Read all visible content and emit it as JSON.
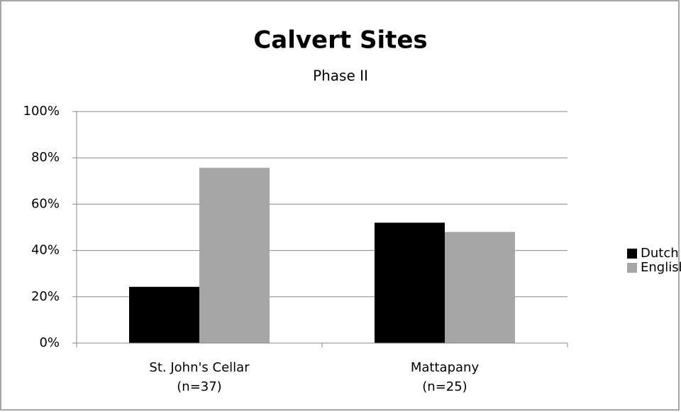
{
  "chart_data": {
    "type": "bar",
    "title": "Calvert Sites",
    "subtitle": "Phase II",
    "categories": [
      [
        "St. John's Cellar",
        "(n=37)"
      ],
      [
        "Mattapany",
        "(n=25)"
      ]
    ],
    "series": [
      {
        "name": "Dutch",
        "color": "#000000",
        "values": [
          24.3,
          52
        ]
      },
      {
        "name": "English",
        "color": "#a6a6a6",
        "values": [
          75.7,
          48
        ]
      }
    ],
    "ylim": [
      0,
      100
    ],
    "yticks": [
      {
        "value": 0,
        "label": "0%"
      },
      {
        "value": 20,
        "label": "20%"
      },
      {
        "value": 40,
        "label": "40%"
      },
      {
        "value": 60,
        "label": "60%"
      },
      {
        "value": 80,
        "label": "80%"
      },
      {
        "value": 100,
        "label": "100%"
      }
    ],
    "grid": true,
    "legend": "right"
  }
}
